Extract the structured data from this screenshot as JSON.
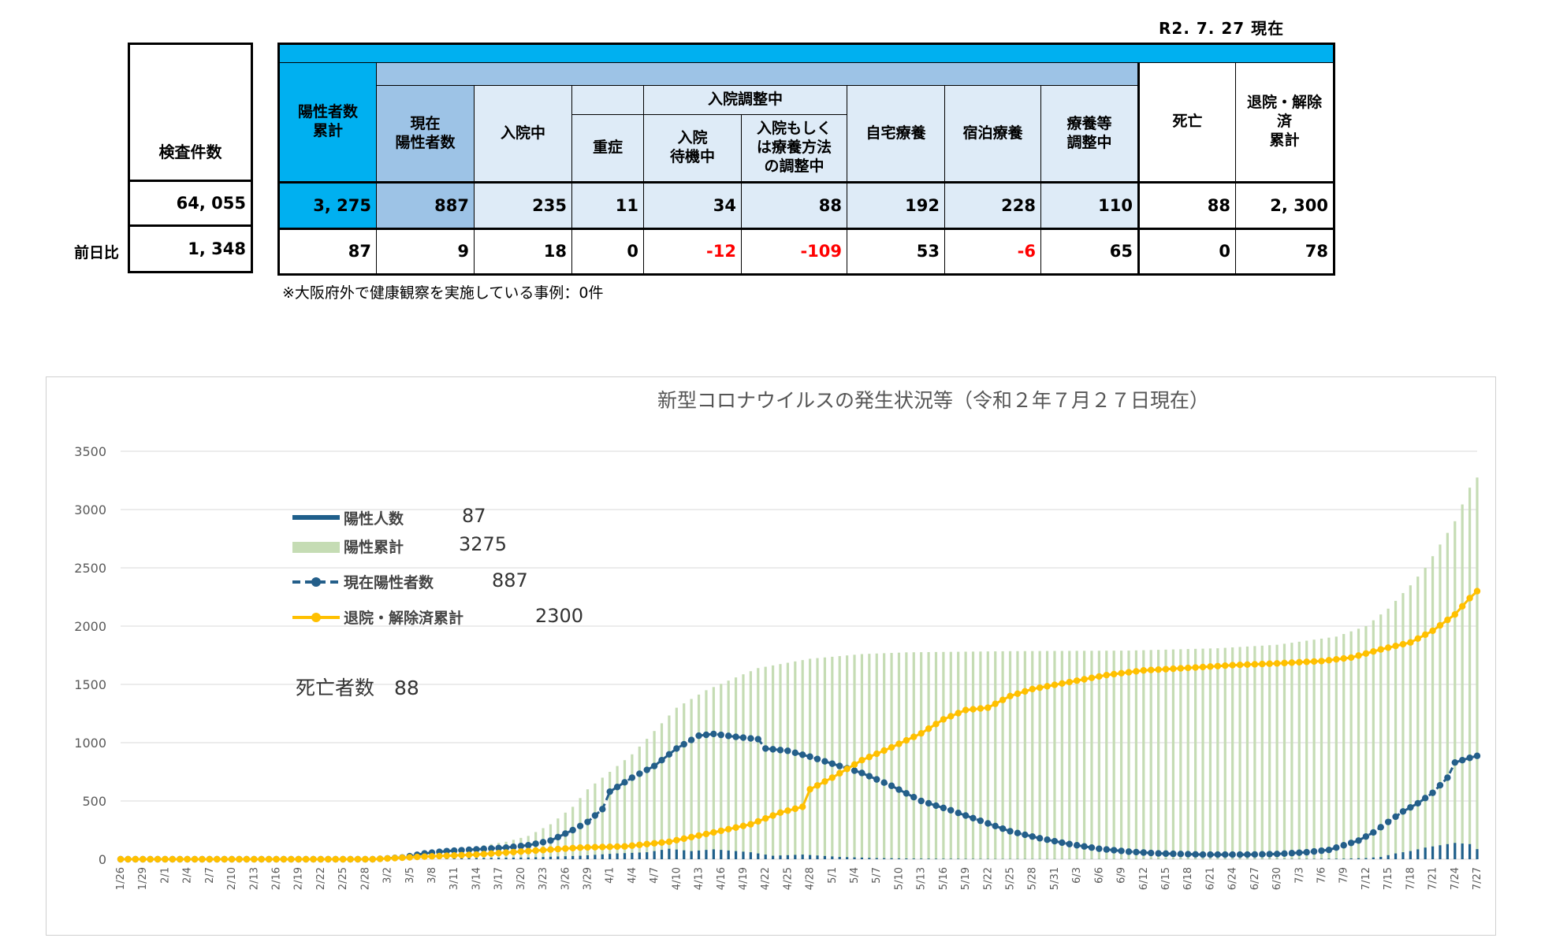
{
  "as_of": "R2. 7. 27 現在",
  "tests": {
    "header": "検査件数",
    "value": "64, 055",
    "diff": "1, 348"
  },
  "prev_day_label": "前日比",
  "table": {
    "positive_total": {
      "label": "陽性者数\n累計",
      "value": "3, 275",
      "diff": "87"
    },
    "current_positive": {
      "label": "現在\n陽性者数",
      "value": "887",
      "diff": "9"
    },
    "hospitalized": {
      "label": "入院中",
      "value": "235",
      "diff": "18"
    },
    "severe": {
      "label": "重症",
      "value": "11",
      "diff": "0"
    },
    "hosp_adjusting_label": "入院調整中",
    "waiting": {
      "label": "入院\n待機中",
      "value": "34",
      "diff": "-12"
    },
    "adjusting": {
      "label": "入院もしく\nは療養方法\nの調整中",
      "value": "88",
      "diff": "-109"
    },
    "home_care": {
      "label": "自宅療養",
      "value": "192",
      "diff": "53"
    },
    "hotel_care": {
      "label": "宿泊療養",
      "value": "228",
      "diff": "-6"
    },
    "care_adjusting": {
      "label": "療養等\n調整中",
      "value": "110",
      "diff": "65"
    },
    "deaths": {
      "label": "死亡",
      "value": "88",
      "diff": "0"
    },
    "discharged": {
      "label": "退院・解除\n済\n累計",
      "value": "2, 300",
      "diff": "78"
    }
  },
  "note": "※大阪府外で健康観察を実施している事例：0件",
  "legend": {
    "daily": {
      "label": "陽性人数",
      "value": "87"
    },
    "cumulative": {
      "label": "陽性累計",
      "value": "3275"
    },
    "current": {
      "label": "現在陽性者数",
      "value": "887"
    },
    "discharged": {
      "label": "退院・解除済累計",
      "value": "2300"
    },
    "deaths": "死亡者数　88"
  },
  "colors": {
    "band": "#00b0f0",
    "mid": "#9dc3e6",
    "light": "#deebf7",
    "daily": "#1f5f8b",
    "cumulative": "#c5dcb4",
    "current": "#245f8a",
    "discharged": "#ffc000"
  },
  "chart_data": {
    "type": "bar",
    "title": "新型コロナウイルスの発生状況等（令和２年７月２７日現在）",
    "ylim": [
      0,
      3500
    ],
    "yticks": [
      0,
      500,
      1000,
      1500,
      2000,
      2500,
      3000,
      3500
    ],
    "start_date": "1/26",
    "x_tick_labels": [
      "1/26",
      "1/29",
      "2/1",
      "2/4",
      "2/7",
      "2/10",
      "2/13",
      "2/16",
      "2/19",
      "2/22",
      "2/25",
      "2/28",
      "3/2",
      "3/5",
      "3/8",
      "3/11",
      "3/14",
      "3/17",
      "3/20",
      "3/23",
      "3/26",
      "3/29",
      "4/1",
      "4/4",
      "4/7",
      "4/10",
      "4/13",
      "4/16",
      "4/19",
      "4/22",
      "4/25",
      "4/28",
      "5/1",
      "5/4",
      "5/7",
      "5/10",
      "5/13",
      "5/16",
      "5/19",
      "5/22",
      "5/25",
      "5/28",
      "5/31",
      "6/3",
      "6/6",
      "6/9",
      "6/12",
      "6/15",
      "6/18",
      "6/21",
      "6/24",
      "6/27",
      "6/30",
      "7/3",
      "7/6",
      "7/9",
      "7/12",
      "7/15",
      "7/18",
      "7/21",
      "7/24",
      "7/27"
    ],
    "x_tick_step_days": 3,
    "series": [
      {
        "name": "陽性人数",
        "kind": "bar",
        "keypoints": [
          [
            0,
            0
          ],
          [
            34,
            0
          ],
          [
            40,
            5
          ],
          [
            55,
            15
          ],
          [
            62,
            30
          ],
          [
            67,
            50
          ],
          [
            71,
            60
          ],
          [
            74,
            90
          ],
          [
            77,
            70
          ],
          [
            80,
            85
          ],
          [
            85,
            60
          ],
          [
            88,
            30
          ],
          [
            92,
            40
          ],
          [
            97,
            20
          ],
          [
            102,
            10
          ],
          [
            108,
            5
          ],
          [
            118,
            2
          ],
          [
            128,
            1
          ],
          [
            150,
            2
          ],
          [
            160,
            3
          ],
          [
            165,
            5
          ],
          [
            168,
            10
          ],
          [
            170,
            20
          ],
          [
            172,
            50
          ],
          [
            174,
            70
          ],
          [
            176,
            100
          ],
          [
            178,
            120
          ],
          [
            180,
            140
          ],
          [
            182,
            130
          ],
          [
            183,
            87
          ]
        ]
      },
      {
        "name": "陽性累計",
        "kind": "bar",
        "keypoints": [
          [
            0,
            0
          ],
          [
            34,
            0
          ],
          [
            38,
            20
          ],
          [
            41,
            70
          ],
          [
            44,
            90
          ],
          [
            48,
            110
          ],
          [
            52,
            150
          ],
          [
            55,
            200
          ],
          [
            58,
            300
          ],
          [
            61,
            450
          ],
          [
            63,
            600
          ],
          [
            65,
            700
          ],
          [
            69,
            900
          ],
          [
            72,
            1100
          ],
          [
            75,
            1300
          ],
          [
            79,
            1450
          ],
          [
            83,
            1560
          ],
          [
            86,
            1640
          ],
          [
            93,
            1720
          ],
          [
            100,
            1760
          ],
          [
            106,
            1775
          ],
          [
            120,
            1785
          ],
          [
            136,
            1790
          ],
          [
            148,
            1810
          ],
          [
            156,
            1840
          ],
          [
            164,
            1910
          ],
          [
            168,
            2000
          ],
          [
            171,
            2150
          ],
          [
            174,
            2350
          ],
          [
            176,
            2500
          ],
          [
            178,
            2700
          ],
          [
            180,
            2900
          ],
          [
            182,
            3188
          ],
          [
            183,
            3275
          ]
        ]
      },
      {
        "name": "現在陽性者数",
        "kind": "line-dashed",
        "keypoints": [
          [
            0,
            0
          ],
          [
            34,
            0
          ],
          [
            38,
            15
          ],
          [
            41,
            50
          ],
          [
            44,
            70
          ],
          [
            48,
            85
          ],
          [
            52,
            100
          ],
          [
            55,
            120
          ],
          [
            58,
            160
          ],
          [
            61,
            250
          ],
          [
            63,
            320
          ],
          [
            65,
            430
          ],
          [
            66,
            580
          ],
          [
            69,
            700
          ],
          [
            72,
            800
          ],
          [
            75,
            950
          ],
          [
            78,
            1060
          ],
          [
            80,
            1075
          ],
          [
            83,
            1050
          ],
          [
            86,
            1030
          ],
          [
            87,
            950
          ],
          [
            90,
            930
          ],
          [
            93,
            880
          ],
          [
            97,
            800
          ],
          [
            100,
            740
          ],
          [
            104,
            630
          ],
          [
            108,
            500
          ],
          [
            112,
            420
          ],
          [
            116,
            330
          ],
          [
            120,
            240
          ],
          [
            124,
            180
          ],
          [
            128,
            130
          ],
          [
            132,
            90
          ],
          [
            136,
            65
          ],
          [
            140,
            50
          ],
          [
            146,
            40
          ],
          [
            152,
            40
          ],
          [
            156,
            45
          ],
          [
            160,
            60
          ],
          [
            163,
            80
          ],
          [
            165,
            120
          ],
          [
            167,
            160
          ],
          [
            169,
            230
          ],
          [
            171,
            320
          ],
          [
            173,
            410
          ],
          [
            175,
            480
          ],
          [
            177,
            570
          ],
          [
            179,
            700
          ],
          [
            180,
            830
          ],
          [
            182,
            870
          ],
          [
            183,
            887
          ]
        ]
      },
      {
        "name": "退院・解除済累計",
        "kind": "line",
        "keypoints": [
          [
            0,
            0
          ],
          [
            34,
            0
          ],
          [
            40,
            20
          ],
          [
            48,
            40
          ],
          [
            55,
            70
          ],
          [
            62,
            100
          ],
          [
            68,
            110
          ],
          [
            74,
            150
          ],
          [
            80,
            230
          ],
          [
            85,
            300
          ],
          [
            89,
            400
          ],
          [
            92,
            450
          ],
          [
            93,
            600
          ],
          [
            96,
            700
          ],
          [
            100,
            850
          ],
          [
            104,
            960
          ],
          [
            108,
            1080
          ],
          [
            111,
            1200
          ],
          [
            114,
            1280
          ],
          [
            117,
            1300
          ],
          [
            120,
            1400
          ],
          [
            123,
            1460
          ],
          [
            128,
            1520
          ],
          [
            133,
            1580
          ],
          [
            138,
            1620
          ],
          [
            145,
            1645
          ],
          [
            150,
            1665
          ],
          [
            156,
            1680
          ],
          [
            162,
            1700
          ],
          [
            166,
            1730
          ],
          [
            170,
            1800
          ],
          [
            174,
            1860
          ],
          [
            177,
            1960
          ],
          [
            180,
            2100
          ],
          [
            182,
            2240
          ],
          [
            183,
            2300
          ]
        ]
      }
    ]
  }
}
